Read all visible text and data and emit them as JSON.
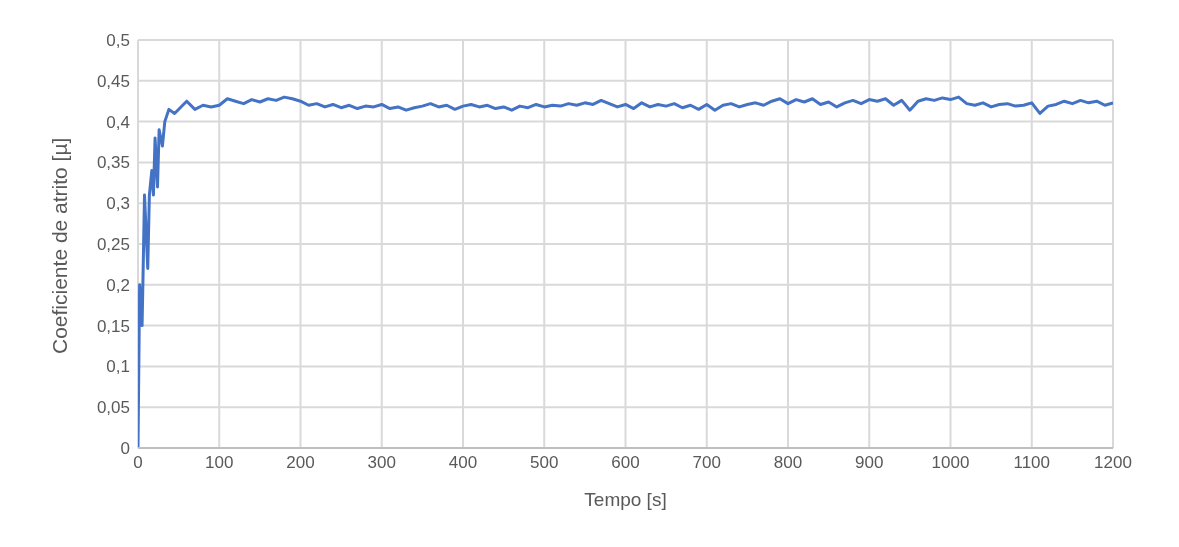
{
  "chart_data": {
    "type": "line",
    "xlabel": "Tempo [s]",
    "ylabel": "Coeficiente de atrito [µ]",
    "grid": true,
    "xlim": [
      0,
      1200
    ],
    "xticks": [
      0,
      100,
      200,
      300,
      400,
      500,
      600,
      700,
      800,
      900,
      1000,
      1100,
      1200
    ],
    "ylim": [
      0,
      0.5
    ],
    "yticks": [
      {
        "value": 0,
        "label": "0"
      },
      {
        "value": 0.05,
        "label": "0,05"
      },
      {
        "value": 0.1,
        "label": "0,1"
      },
      {
        "value": 0.15,
        "label": "0,15"
      },
      {
        "value": 0.2,
        "label": "0,2"
      },
      {
        "value": 0.25,
        "label": "0,25"
      },
      {
        "value": 0.3,
        "label": "0,3"
      },
      {
        "value": 0.35,
        "label": "0,35"
      },
      {
        "value": 0.4,
        "label": "0,4"
      },
      {
        "value": 0.45,
        "label": "0,45"
      },
      {
        "value": 0.5,
        "label": "0,5"
      }
    ],
    "x": [
      0,
      1,
      2,
      5,
      6,
      8,
      12,
      14,
      17,
      19,
      21,
      24,
      26,
      30,
      33,
      38,
      45,
      55,
      60,
      70,
      80,
      90,
      100,
      110,
      120,
      130,
      140,
      150,
      160,
      170,
      180,
      190,
      200,
      210,
      220,
      230,
      240,
      250,
      260,
      270,
      280,
      290,
      300,
      310,
      320,
      330,
      340,
      350,
      360,
      370,
      380,
      390,
      400,
      410,
      420,
      430,
      440,
      450,
      460,
      470,
      480,
      490,
      500,
      510,
      520,
      530,
      540,
      550,
      560,
      570,
      580,
      590,
      600,
      610,
      620,
      630,
      640,
      650,
      660,
      670,
      680,
      690,
      700,
      710,
      720,
      730,
      740,
      750,
      760,
      770,
      780,
      790,
      800,
      810,
      820,
      830,
      840,
      850,
      860,
      870,
      880,
      890,
      900,
      910,
      920,
      930,
      940,
      950,
      960,
      970,
      980,
      990,
      1000,
      1010,
      1020,
      1030,
      1040,
      1050,
      1060,
      1070,
      1080,
      1090,
      1100,
      1110,
      1120,
      1130,
      1140,
      1150,
      1160,
      1170,
      1180,
      1190,
      1200
    ],
    "series": [
      {
        "color": "#4472c4",
        "values": [
          0,
          0.1,
          0.2,
          0.15,
          0.2,
          0.31,
          0.22,
          0.31,
          0.34,
          0.31,
          0.38,
          0.32,
          0.39,
          0.37,
          0.4,
          0.415,
          0.41,
          0.42,
          0.425,
          0.415,
          0.42,
          0.418,
          0.42,
          0.428,
          0.425,
          0.422,
          0.427,
          0.424,
          0.428,
          0.426,
          0.43,
          0.428,
          0.425,
          0.42,
          0.422,
          0.418,
          0.421,
          0.417,
          0.42,
          0.416,
          0.419,
          0.418,
          0.421,
          0.416,
          0.418,
          0.414,
          0.417,
          0.419,
          0.422,
          0.418,
          0.42,
          0.415,
          0.419,
          0.421,
          0.418,
          0.42,
          0.416,
          0.418,
          0.414,
          0.419,
          0.417,
          0.421,
          0.418,
          0.42,
          0.419,
          0.422,
          0.42,
          0.423,
          0.421,
          0.426,
          0.422,
          0.418,
          0.421,
          0.416,
          0.423,
          0.418,
          0.421,
          0.419,
          0.422,
          0.417,
          0.42,
          0.415,
          0.421,
          0.414,
          0.42,
          0.422,
          0.418,
          0.421,
          0.423,
          0.42,
          0.425,
          0.428,
          0.422,
          0.427,
          0.424,
          0.428,
          0.421,
          0.424,
          0.418,
          0.423,
          0.426,
          0.422,
          0.427,
          0.425,
          0.428,
          0.42,
          0.426,
          0.414,
          0.425,
          0.428,
          0.426,
          0.429,
          0.427,
          0.43,
          0.422,
          0.42,
          0.423,
          0.418,
          0.421,
          0.422,
          0.419,
          0.42,
          0.423,
          0.41,
          0.419,
          0.421,
          0.425,
          0.422,
          0.426,
          0.423,
          0.425,
          0.42,
          0.423
        ]
      }
    ]
  }
}
